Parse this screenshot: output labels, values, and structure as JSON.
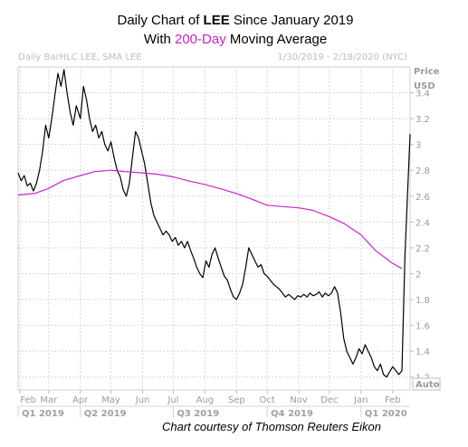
{
  "header": {
    "title_line1_prefix": "Daily Chart of ",
    "title_line1_ticker": "LEE",
    "title_line1_suffix": " Since January 2019",
    "title_line2_prefix": "With ",
    "title_line2_accent": "200-Day",
    "title_line2_suffix": " Moving Average",
    "accent_color": "#cc22cc"
  },
  "chart_meta": {
    "study_label": "Daily BarHLC LEE, SMA LEE",
    "date_range": "1/30/2019 - 2/18/2020 (NYC)",
    "price_label": "Price",
    "currency_label": "USD",
    "auto_label": "Auto",
    "credit": "Chart courtesy of Thomson Reuters Eikon"
  },
  "chart_data": {
    "type": "line",
    "x_unit": "date",
    "ylim": [
      1.1,
      3.6
    ],
    "xlim": [
      "2019-01-30",
      "2020-02-18"
    ],
    "grid": true,
    "y_ticks": [
      {
        "value": 3.4,
        "label": "3.4"
      },
      {
        "value": 3.2,
        "label": "3.2"
      },
      {
        "value": 3.0,
        "label": "3"
      },
      {
        "value": 2.8,
        "label": "2.8"
      },
      {
        "value": 2.6,
        "label": "2.6"
      },
      {
        "value": 2.4,
        "label": "2.4"
      },
      {
        "value": 2.2,
        "label": "2.2"
      },
      {
        "value": 2.0,
        "label": "2"
      },
      {
        "value": 1.8,
        "label": "1.8"
      },
      {
        "value": 1.6,
        "label": "1.6"
      },
      {
        "value": 1.4,
        "label": "1.4"
      },
      {
        "value": 1.2,
        "label": "1.2"
      }
    ],
    "x_ticks": [
      {
        "date": "2019-02-01",
        "label": "Feb"
      },
      {
        "date": "2019-03-01",
        "label": "Mar"
      },
      {
        "date": "2019-04-01",
        "label": "Apr"
      },
      {
        "date": "2019-05-01",
        "label": "May"
      },
      {
        "date": "2019-06-01",
        "label": "Jun"
      },
      {
        "date": "2019-07-01",
        "label": "Jul"
      },
      {
        "date": "2019-08-01",
        "label": "Aug"
      },
      {
        "date": "2019-09-01",
        "label": "Sep"
      },
      {
        "date": "2019-10-01",
        "label": "Oct"
      },
      {
        "date": "2019-11-01",
        "label": "Nov"
      },
      {
        "date": "2019-12-01",
        "label": "Dec"
      },
      {
        "date": "2020-01-01",
        "label": "Jan"
      },
      {
        "date": "2020-02-01",
        "label": "Feb"
      }
    ],
    "quarters": [
      {
        "start": "2019-01-30",
        "end": "2019-03-31",
        "label": "Q1 2019"
      },
      {
        "start": "2019-04-01",
        "end": "2019-06-30",
        "label": "Q2 2019"
      },
      {
        "start": "2019-07-01",
        "end": "2019-09-30",
        "label": "Q3 2019"
      },
      {
        "start": "2019-10-01",
        "end": "2019-12-31",
        "label": "Q4 2019"
      },
      {
        "start": "2020-01-01",
        "end": "2020-02-18",
        "label": "Q1 2020"
      }
    ],
    "series": [
      {
        "color": "#000000",
        "points": [
          [
            "2019-01-30",
            2.78
          ],
          [
            "2019-02-02",
            2.72
          ],
          [
            "2019-02-05",
            2.76
          ],
          [
            "2019-02-08",
            2.68
          ],
          [
            "2019-02-11",
            2.7
          ],
          [
            "2019-02-14",
            2.64
          ],
          [
            "2019-02-17",
            2.7
          ],
          [
            "2019-02-20",
            2.8
          ],
          [
            "2019-02-23",
            2.95
          ],
          [
            "2019-02-26",
            3.15
          ],
          [
            "2019-03-01",
            3.05
          ],
          [
            "2019-03-04",
            3.2
          ],
          [
            "2019-03-07",
            3.38
          ],
          [
            "2019-03-10",
            3.55
          ],
          [
            "2019-03-13",
            3.45
          ],
          [
            "2019-03-16",
            3.58
          ],
          [
            "2019-03-19",
            3.4
          ],
          [
            "2019-03-22",
            3.25
          ],
          [
            "2019-03-25",
            3.15
          ],
          [
            "2019-03-28",
            3.3
          ],
          [
            "2019-04-01",
            3.2
          ],
          [
            "2019-04-04",
            3.45
          ],
          [
            "2019-04-07",
            3.35
          ],
          [
            "2019-04-10",
            3.2
          ],
          [
            "2019-04-13",
            3.1
          ],
          [
            "2019-04-16",
            3.15
          ],
          [
            "2019-04-19",
            3.05
          ],
          [
            "2019-04-22",
            3.1
          ],
          [
            "2019-04-25",
            3.0
          ],
          [
            "2019-04-28",
            2.95
          ],
          [
            "2019-05-01",
            3.02
          ],
          [
            "2019-05-04",
            2.9
          ],
          [
            "2019-05-07",
            2.8
          ],
          [
            "2019-05-10",
            2.75
          ],
          [
            "2019-05-13",
            2.65
          ],
          [
            "2019-05-16",
            2.6
          ],
          [
            "2019-05-19",
            2.7
          ],
          [
            "2019-05-22",
            2.9
          ],
          [
            "2019-05-25",
            3.1
          ],
          [
            "2019-05-28",
            3.05
          ],
          [
            "2019-05-31",
            2.95
          ],
          [
            "2019-06-03",
            2.85
          ],
          [
            "2019-06-06",
            2.7
          ],
          [
            "2019-06-09",
            2.55
          ],
          [
            "2019-06-12",
            2.45
          ],
          [
            "2019-06-15",
            2.4
          ],
          [
            "2019-06-18",
            2.35
          ],
          [
            "2019-06-21",
            2.3
          ],
          [
            "2019-06-24",
            2.33
          ],
          [
            "2019-06-27",
            2.3
          ],
          [
            "2019-06-30",
            2.25
          ],
          [
            "2019-07-03",
            2.28
          ],
          [
            "2019-07-06",
            2.22
          ],
          [
            "2019-07-09",
            2.25
          ],
          [
            "2019-07-12",
            2.2
          ],
          [
            "2019-07-15",
            2.25
          ],
          [
            "2019-07-18",
            2.18
          ],
          [
            "2019-07-21",
            2.12
          ],
          [
            "2019-07-24",
            2.05
          ],
          [
            "2019-07-27",
            2.0
          ],
          [
            "2019-07-30",
            1.97
          ],
          [
            "2019-08-02",
            2.1
          ],
          [
            "2019-08-05",
            2.05
          ],
          [
            "2019-08-08",
            2.15
          ],
          [
            "2019-08-11",
            2.2
          ],
          [
            "2019-08-14",
            2.12
          ],
          [
            "2019-08-17",
            2.05
          ],
          [
            "2019-08-20",
            1.98
          ],
          [
            "2019-08-23",
            1.95
          ],
          [
            "2019-08-26",
            1.88
          ],
          [
            "2019-08-29",
            1.82
          ],
          [
            "2019-09-01",
            1.8
          ],
          [
            "2019-09-04",
            1.85
          ],
          [
            "2019-09-07",
            1.92
          ],
          [
            "2019-09-10",
            2.05
          ],
          [
            "2019-09-13",
            2.2
          ],
          [
            "2019-09-16",
            2.15
          ],
          [
            "2019-09-19",
            2.1
          ],
          [
            "2019-09-22",
            2.05
          ],
          [
            "2019-09-25",
            2.07
          ],
          [
            "2019-09-28",
            2.0
          ],
          [
            "2019-10-01",
            1.98
          ],
          [
            "2019-10-04",
            1.95
          ],
          [
            "2019-10-07",
            1.92
          ],
          [
            "2019-10-10",
            1.9
          ],
          [
            "2019-10-13",
            1.88
          ],
          [
            "2019-10-16",
            1.85
          ],
          [
            "2019-10-19",
            1.82
          ],
          [
            "2019-10-22",
            1.84
          ],
          [
            "2019-10-25",
            1.82
          ],
          [
            "2019-10-28",
            1.8
          ],
          [
            "2019-10-31",
            1.83
          ],
          [
            "2019-11-03",
            1.82
          ],
          [
            "2019-11-06",
            1.84
          ],
          [
            "2019-11-09",
            1.82
          ],
          [
            "2019-11-12",
            1.85
          ],
          [
            "2019-11-15",
            1.83
          ],
          [
            "2019-11-18",
            1.84
          ],
          [
            "2019-11-21",
            1.86
          ],
          [
            "2019-11-24",
            1.82
          ],
          [
            "2019-11-27",
            1.85
          ],
          [
            "2019-11-30",
            1.83
          ],
          [
            "2019-12-03",
            1.85
          ],
          [
            "2019-12-06",
            1.9
          ],
          [
            "2019-12-09",
            1.85
          ],
          [
            "2019-12-12",
            1.7
          ],
          [
            "2019-12-15",
            1.5
          ],
          [
            "2019-12-18",
            1.4
          ],
          [
            "2019-12-21",
            1.35
          ],
          [
            "2019-12-24",
            1.3
          ],
          [
            "2019-12-27",
            1.35
          ],
          [
            "2019-12-30",
            1.42
          ],
          [
            "2020-01-02",
            1.38
          ],
          [
            "2020-01-05",
            1.45
          ],
          [
            "2020-01-08",
            1.4
          ],
          [
            "2020-01-11",
            1.35
          ],
          [
            "2020-01-14",
            1.28
          ],
          [
            "2020-01-17",
            1.25
          ],
          [
            "2020-01-20",
            1.3
          ],
          [
            "2020-01-23",
            1.22
          ],
          [
            "2020-01-26",
            1.2
          ],
          [
            "2020-01-29",
            1.24
          ],
          [
            "2020-02-01",
            1.28
          ],
          [
            "2020-02-04",
            1.25
          ],
          [
            "2020-02-07",
            1.22
          ],
          [
            "2020-02-10",
            1.25
          ],
          [
            "2020-02-13",
            2.15
          ],
          [
            "2020-02-18",
            3.08
          ]
        ]
      },
      {
        "color": "#cc22cc",
        "points": [
          [
            "2019-01-30",
            2.61
          ],
          [
            "2019-02-15",
            2.62
          ],
          [
            "2019-03-01",
            2.66
          ],
          [
            "2019-03-15",
            2.72
          ],
          [
            "2019-04-01",
            2.76
          ],
          [
            "2019-04-15",
            2.79
          ],
          [
            "2019-05-01",
            2.8
          ],
          [
            "2019-05-15",
            2.79
          ],
          [
            "2019-06-01",
            2.78
          ],
          [
            "2019-06-15",
            2.77
          ],
          [
            "2019-07-01",
            2.75
          ],
          [
            "2019-07-15",
            2.72
          ],
          [
            "2019-08-01",
            2.69
          ],
          [
            "2019-08-15",
            2.66
          ],
          [
            "2019-09-01",
            2.62
          ],
          [
            "2019-09-15",
            2.58
          ],
          [
            "2019-10-01",
            2.53
          ],
          [
            "2019-10-15",
            2.52
          ],
          [
            "2019-11-01",
            2.51
          ],
          [
            "2019-11-15",
            2.49
          ],
          [
            "2019-12-01",
            2.44
          ],
          [
            "2019-12-15",
            2.39
          ],
          [
            "2020-01-01",
            2.3
          ],
          [
            "2020-01-15",
            2.18
          ],
          [
            "2020-02-01",
            2.08
          ],
          [
            "2020-02-10",
            2.04
          ]
        ]
      }
    ]
  }
}
